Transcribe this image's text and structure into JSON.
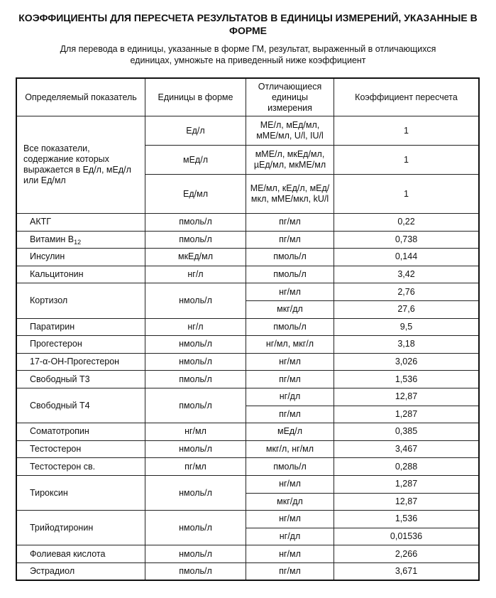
{
  "title": "КОЭФФИЦИЕНТЫ ДЛЯ ПЕРЕСЧЕТА РЕЗУЛЬТАТОВ В ЕДИНИЦЫ ИЗМЕРЕНИЙ, УКАЗАННЫЕ В ФОРМЕ",
  "subtitle": "Для перевода в единицы, указанные в форме ГМ, результат, выраженный в отличающихся единицах, умножьте на приведенный ниже коэффициент",
  "table": {
    "headers": [
      "Определяемый показатель",
      "Единицы в форме",
      "Отличающиеся единицы измерения",
      "Коэффициент пересчета"
    ],
    "groups": [
      {
        "indicator": "Все показатели, содержание которых выражается в Ед/л, мЕд/л или Ед/мл",
        "form_units": [
          {
            "unit": "Ед/л",
            "alts": [
              {
                "units": "МЕ/л, мЕд/мл, мМЕ/мл, U/l, IU/l",
                "coef": "1"
              }
            ]
          },
          {
            "unit": "мЕд/л",
            "alts": [
              {
                "units": "мМЕ/л, мкЕд/мл, µЕд/мл, мкМЕ/мл",
                "coef": "1"
              }
            ]
          },
          {
            "unit": "Ед/мл",
            "alts": [
              {
                "units": "МЕ/мл, кЕд/л, мЕд/мкл, мМЕ/мкл, kU/l",
                "coef": "1"
              }
            ]
          }
        ]
      },
      {
        "indicator": "АКТГ",
        "form_units": [
          {
            "unit": "пмоль/л",
            "alts": [
              {
                "units": "пг/мл",
                "coef": "0,22"
              }
            ]
          }
        ]
      },
      {
        "indicator": "Витамин B",
        "indicator_sub": "12",
        "form_units": [
          {
            "unit": "пмоль/л",
            "alts": [
              {
                "units": "пг/мл",
                "coef": "0,738"
              }
            ]
          }
        ]
      },
      {
        "indicator": "Инсулин",
        "form_units": [
          {
            "unit": "мкЕд/мл",
            "alts": [
              {
                "units": "пмоль/л",
                "coef": "0,144"
              }
            ]
          }
        ]
      },
      {
        "indicator": "Кальцитонин",
        "form_units": [
          {
            "unit": "нг/л",
            "alts": [
              {
                "units": "пмоль/л",
                "coef": "3,42"
              }
            ]
          }
        ]
      },
      {
        "indicator": "Кортизол",
        "form_units": [
          {
            "unit": "нмоль/л",
            "alts": [
              {
                "units": "нг/мл",
                "coef": "2,76"
              },
              {
                "units": "мкг/дл",
                "coef": "27,6"
              }
            ]
          }
        ]
      },
      {
        "indicator": "Паратирин",
        "form_units": [
          {
            "unit": "нг/л",
            "alts": [
              {
                "units": "пмоль/л",
                "coef": "9,5"
              }
            ]
          }
        ]
      },
      {
        "indicator": "Прогестерон",
        "form_units": [
          {
            "unit": "нмоль/л",
            "alts": [
              {
                "units": "нг/мл, мкг/л",
                "coef": "3,18"
              }
            ]
          }
        ]
      },
      {
        "indicator": "17-α-ОН-Прогестерон",
        "form_units": [
          {
            "unit": "нмоль/л",
            "alts": [
              {
                "units": "нг/мл",
                "coef": "3,026"
              }
            ]
          }
        ]
      },
      {
        "indicator": "Свободный Т3",
        "form_units": [
          {
            "unit": "пмоль/л",
            "alts": [
              {
                "units": "пг/мл",
                "coef": "1,536"
              }
            ]
          }
        ]
      },
      {
        "indicator": "Свободный Т4",
        "form_units": [
          {
            "unit": "пмоль/л",
            "alts": [
              {
                "units": "нг/дл",
                "coef": "12,87"
              },
              {
                "units": "пг/мл",
                "coef": "1,287"
              }
            ]
          }
        ]
      },
      {
        "indicator": "Соматотропин",
        "form_units": [
          {
            "unit": "нг/мл",
            "alts": [
              {
                "units": "мЕд/л",
                "coef": "0,385"
              }
            ]
          }
        ]
      },
      {
        "indicator": "Тестостерон",
        "form_units": [
          {
            "unit": "нмоль/л",
            "alts": [
              {
                "units": "мкг/л, нг/мл",
                "coef": "3,467"
              }
            ]
          }
        ]
      },
      {
        "indicator": "Тестостерон св.",
        "form_units": [
          {
            "unit": "пг/мл",
            "alts": [
              {
                "units": "пмоль/л",
                "coef": "0,288"
              }
            ]
          }
        ]
      },
      {
        "indicator": "Тироксин",
        "form_units": [
          {
            "unit": "нмоль/л",
            "alts": [
              {
                "units": "нг/мл",
                "coef": "1,287"
              },
              {
                "units": "мкг/дл",
                "coef": "12,87"
              }
            ]
          }
        ]
      },
      {
        "indicator": "Трийодтиронин",
        "form_units": [
          {
            "unit": "нмоль/л",
            "alts": [
              {
                "units": "нг/мл",
                "coef": "1,536"
              },
              {
                "units": "нг/дл",
                "coef": "0,01536"
              }
            ]
          }
        ]
      },
      {
        "indicator": "Фолиевая кислота",
        "form_units": [
          {
            "unit": "нмоль/л",
            "alts": [
              {
                "units": "нг/мл",
                "coef": "2,266"
              }
            ]
          }
        ]
      },
      {
        "indicator": "Эстрадиол",
        "form_units": [
          {
            "unit": "пмоль/л",
            "alts": [
              {
                "units": "пг/мл",
                "coef": "3,671"
              }
            ]
          }
        ]
      }
    ]
  }
}
